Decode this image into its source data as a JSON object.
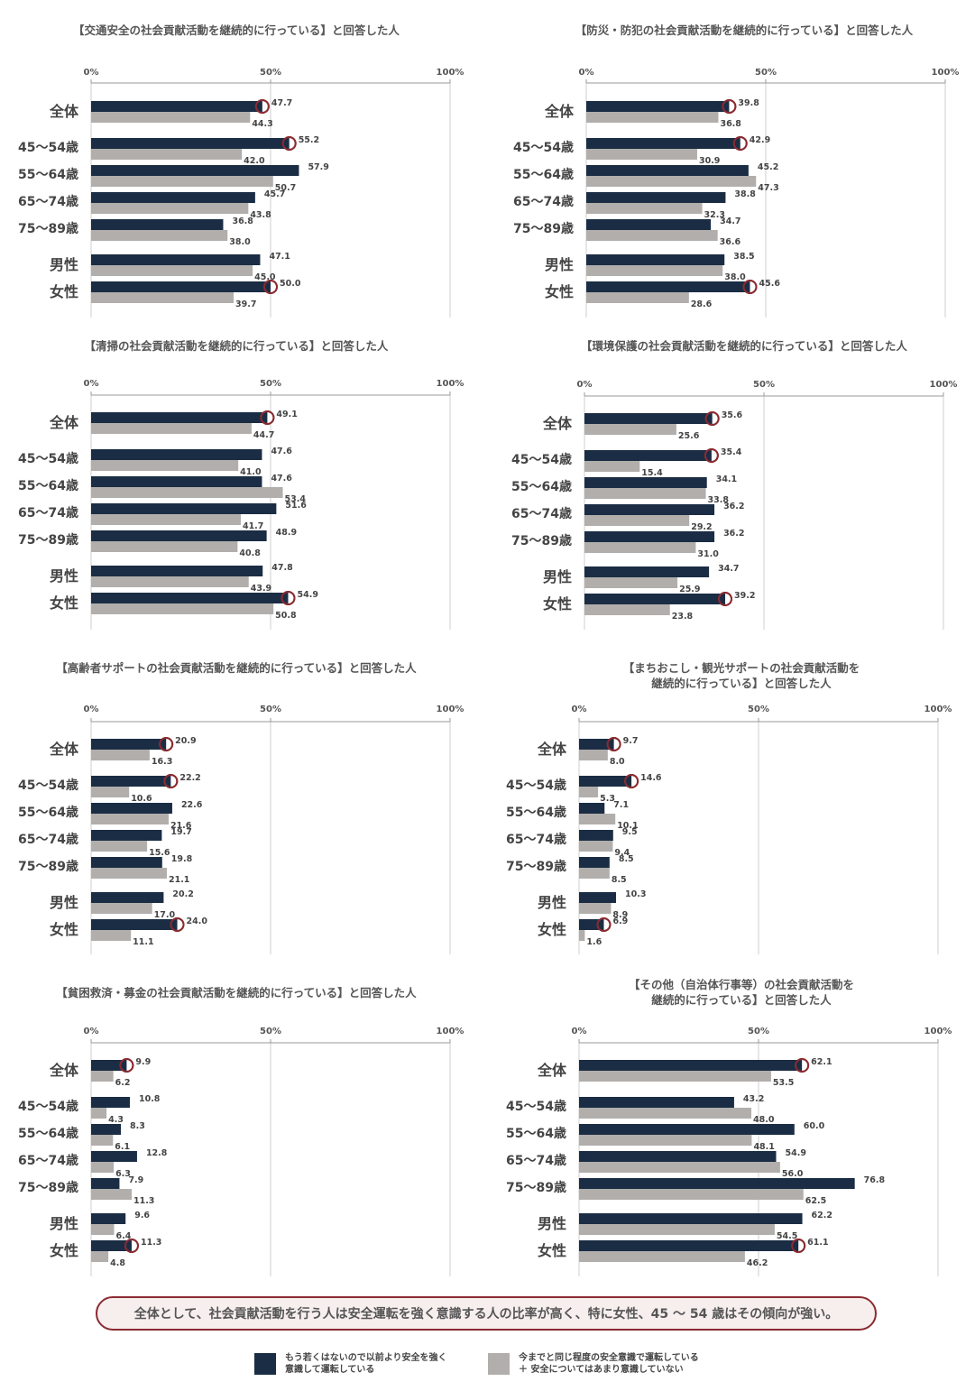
{
  "row_labels": [
    "全体",
    "45～54歳",
    "55～64歳",
    "65～74歳",
    "75～89歳",
    "男性",
    "女性"
  ],
  "colors": {
    "dark": "#1b2d44",
    "gray": "#b1aeab",
    "marker": "#8b2b31",
    "grid": "#cfcfcf"
  },
  "chart_data": [
    {
      "type": "bar",
      "title": "【交通安全の社会貢献活動を継続的に行っている】と回答した人",
      "xlim": [
        0,
        100
      ],
      "ticks": [
        "0%",
        "50%",
        "100%"
      ],
      "categories": [
        "全体",
        "45～54歳",
        "55～64歳",
        "65～74歳",
        "75～89歳",
        "男性",
        "女性"
      ],
      "series": [
        {
          "name": "もう若くはないので以前より安全を強く意識して運転している",
          "values": [
            47.7,
            55.2,
            57.9,
            45.7,
            36.8,
            47.1,
            50.0
          ]
        },
        {
          "name": "今までと同じ程度の安全意識で運転している ＋ 安全についてはあまり意識していない",
          "values": [
            44.3,
            42.0,
            50.7,
            43.8,
            38.0,
            45.0,
            39.7
          ]
        }
      ],
      "highlighted": [
        "全体",
        "45～54歳",
        "女性"
      ]
    },
    {
      "type": "bar",
      "title": "【防災・防犯の社会貢献活動を継続的に行っている】と回答した人",
      "xlim": [
        0,
        100
      ],
      "ticks": [
        "0%",
        "50%",
        "100%"
      ],
      "categories": [
        "全体",
        "45～54歳",
        "55～64歳",
        "65～74歳",
        "75～89歳",
        "男性",
        "女性"
      ],
      "series": [
        {
          "name": "もう若くはないので以前より安全を強く意識して運転している",
          "values": [
            39.8,
            42.9,
            45.2,
            38.8,
            34.7,
            38.5,
            45.6
          ]
        },
        {
          "name": "今までと同じ程度の安全意識で運転している ＋ 安全についてはあまり意識していない",
          "values": [
            36.8,
            30.9,
            47.3,
            32.3,
            36.6,
            38.0,
            28.6
          ]
        }
      ],
      "highlighted": [
        "全体",
        "45～54歳",
        "女性"
      ]
    },
    {
      "type": "bar",
      "title": "【清掃の社会貢献活動を継続的に行っている】と回答した人",
      "xlim": [
        0,
        100
      ],
      "ticks": [
        "0%",
        "50%",
        "100%"
      ],
      "categories": [
        "全体",
        "45～54歳",
        "55～64歳",
        "65～74歳",
        "75～89歳",
        "男性",
        "女性"
      ],
      "series": [
        {
          "name": "もう若くはないので以前より安全を強く意識して運転している",
          "values": [
            49.1,
            47.6,
            47.6,
            51.6,
            48.9,
            47.8,
            54.9
          ]
        },
        {
          "name": "今までと同じ程度の安全意識で運転している ＋ 安全についてはあまり意識していない",
          "values": [
            44.7,
            41.0,
            53.4,
            41.7,
            40.8,
            43.9,
            50.8
          ]
        }
      ],
      "highlighted": [
        "全体",
        "女性"
      ]
    },
    {
      "type": "bar",
      "title": "【環境保護の社会貢献活動を継続的に行っている】と回答した人",
      "xlim": [
        0,
        100
      ],
      "ticks": [
        "0%",
        "50%",
        "100%"
      ],
      "categories": [
        "全体",
        "45～54歳",
        "55～64歳",
        "65～74歳",
        "75～89歳",
        "男性",
        "女性"
      ],
      "series": [
        {
          "name": "もう若くはないので以前より安全を強く意識して運転している",
          "values": [
            35.6,
            35.4,
            34.1,
            36.2,
            36.2,
            34.7,
            39.2
          ]
        },
        {
          "name": "今までと同じ程度の安全意識で運転している ＋ 安全についてはあまり意識していない",
          "values": [
            25.6,
            15.4,
            33.8,
            29.2,
            31.0,
            25.9,
            23.8
          ]
        }
      ],
      "highlighted": [
        "全体",
        "45～54歳",
        "女性"
      ]
    },
    {
      "type": "bar",
      "title": "【高齢者サポートの社会貢献活動を継続的に行っている】と回答した人",
      "xlim": [
        0,
        100
      ],
      "ticks": [
        "0%",
        "50%",
        "100%"
      ],
      "categories": [
        "全体",
        "45～54歳",
        "55～64歳",
        "65～74歳",
        "75～89歳",
        "男性",
        "女性"
      ],
      "series": [
        {
          "name": "もう若くはないので以前より安全を強く意識して運転している",
          "values": [
            20.9,
            22.2,
            22.6,
            19.7,
            19.8,
            20.2,
            24.0
          ]
        },
        {
          "name": "今までと同じ程度の安全意識で運転している ＋ 安全についてはあまり意識していない",
          "values": [
            16.3,
            10.6,
            21.6,
            15.6,
            21.1,
            17.0,
            11.1
          ]
        }
      ],
      "highlighted": [
        "全体",
        "45～54歳",
        "女性"
      ]
    },
    {
      "type": "bar",
      "title": "【まちおこし・観光サポートの社会貢献活動を\n継続的に行っている】と回答した人",
      "xlim": [
        0,
        100
      ],
      "ticks": [
        "0%",
        "50%",
        "100%"
      ],
      "categories": [
        "全体",
        "45～54歳",
        "55～64歳",
        "65～74歳",
        "75～89歳",
        "男性",
        "女性"
      ],
      "series": [
        {
          "name": "もう若くはないので以前より安全を強く意識して運転している",
          "values": [
            9.7,
            14.6,
            7.1,
            9.5,
            8.5,
            10.3,
            6.9
          ]
        },
        {
          "name": "今までと同じ程度の安全意識で運転している ＋ 安全についてはあまり意識していない",
          "values": [
            8.0,
            5.3,
            10.1,
            9.4,
            8.5,
            8.9,
            1.6
          ]
        }
      ],
      "highlighted": [
        "全体",
        "45～54歳",
        "女性"
      ]
    },
    {
      "type": "bar",
      "title": "【貧困救済・募金の社会貢献活動を継続的に行っている】と回答した人",
      "xlim": [
        0,
        100
      ],
      "ticks": [
        "0%",
        "50%",
        "100%"
      ],
      "categories": [
        "全体",
        "45～54歳",
        "55～64歳",
        "65～74歳",
        "75～89歳",
        "男性",
        "女性"
      ],
      "series": [
        {
          "name": "もう若くはないので以前より安全を強く意識して運転している",
          "values": [
            9.9,
            10.8,
            8.3,
            12.8,
            7.9,
            9.6,
            11.3
          ]
        },
        {
          "name": "今までと同じ程度の安全意識で運転している ＋ 安全についてはあまり意識していない",
          "values": [
            6.2,
            4.3,
            6.1,
            6.3,
            11.3,
            6.4,
            4.8
          ]
        }
      ],
      "highlighted": [
        "全体",
        "女性"
      ]
    },
    {
      "type": "bar",
      "title": "【その他（自治体行事等）の社会貢献活動を\n継続的に行っている】と回答した人",
      "xlim": [
        0,
        100
      ],
      "ticks": [
        "0%",
        "50%",
        "100%"
      ],
      "categories": [
        "全体",
        "45～54歳",
        "55～64歳",
        "65～74歳",
        "75～89歳",
        "男性",
        "女性"
      ],
      "series": [
        {
          "name": "もう若くはないので以前より安全を強く意識して運転している",
          "values": [
            62.1,
            43.2,
            60.0,
            54.9,
            76.8,
            62.2,
            61.1
          ]
        },
        {
          "name": "今までと同じ程度の安全意識で運転している ＋ 安全についてはあまり意識していない",
          "values": [
            53.5,
            48.0,
            48.1,
            56.0,
            62.5,
            54.5,
            46.2
          ]
        }
      ],
      "highlighted": [
        "全体",
        "女性"
      ]
    }
  ],
  "summary": "全体として、社会貢献活動を行う人は安全運転を強く意識する人の比率が高く、特に女性、45 ～ 54 歳はその傾向が強い。",
  "legend": {
    "dark_line1": "もう若くはないので以前より安全を強く",
    "dark_line2": "意識して運転している",
    "gray_line1": "今までと同じ程度の安全意識で運転している",
    "gray_line2": "＋ 安全についてはあまり意識していない"
  }
}
